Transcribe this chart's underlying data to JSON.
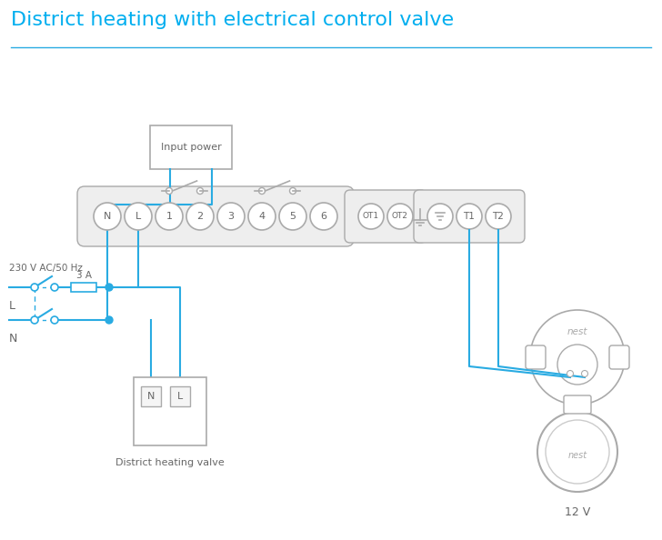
{
  "title": "District heating with electrical control valve",
  "title_color": "#00aeef",
  "title_fontsize": 16,
  "bg_color": "#ffffff",
  "line_color": "#29abe2",
  "gray": "#aaaaaa",
  "text_color": "#666666",
  "left_label": "230 V AC/50 Hz",
  "fuse_label": "3 A",
  "l_label": "L",
  "n_label": "N",
  "valve_label": "District heating valve",
  "nest_label": "12 V",
  "g1_labels": [
    "N",
    "L",
    "1",
    "2",
    "3",
    "4",
    "5",
    "6"
  ],
  "g2_labels": [
    "OT1",
    "OT2"
  ],
  "g3_labels": [
    "≡",
    "T1",
    "T2"
  ]
}
